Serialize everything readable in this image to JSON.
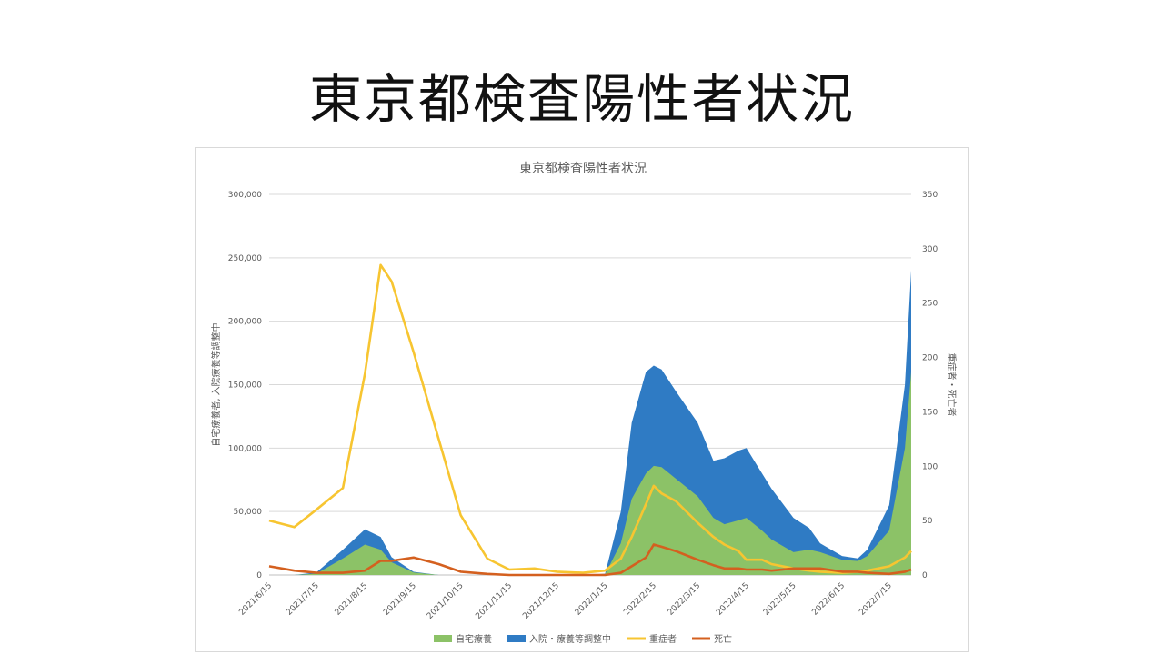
{
  "slide": {
    "title": "東京都検査陽性者状況"
  },
  "chart_data": {
    "type": "area",
    "title": "東京都検査陽性者状況",
    "ylabel": "自宅療養者, 入院療養等調整中",
    "y2label": "重症者・死亡者",
    "ylim": [
      0,
      300000
    ],
    "y2lim": [
      0,
      350
    ],
    "grid": true,
    "legend_position": "bottom",
    "y_ticks": [
      "0",
      "50,000",
      "100,000",
      "150,000",
      "200,000",
      "250,000",
      "300,000"
    ],
    "y2_ticks": [
      "0",
      "50",
      "100",
      "150",
      "200",
      "250",
      "300",
      "350"
    ],
    "x_tick_labels": [
      "2021/6/15",
      "2021/7/15",
      "2021/8/15",
      "2021/9/15",
      "2021/10/15",
      "2021/11/15",
      "2021/12/15",
      "2022/1/15",
      "2022/2/15",
      "2022/3/15",
      "2022/4/15",
      "2022/5/15",
      "2022/6/15",
      "2022/7/15"
    ],
    "x": [
      "2021/6/15",
      "2021/7/1",
      "2021/7/15",
      "2021/8/1",
      "2021/8/15",
      "2021/8/25",
      "2021/9/1",
      "2021/9/15",
      "2021/10/1",
      "2021/10/15",
      "2021/11/1",
      "2021/11/15",
      "2021/12/1",
      "2021/12/15",
      "2022/1/1",
      "2022/1/15",
      "2022/1/25",
      "2022/2/1",
      "2022/2/10",
      "2022/2/15",
      "2022/2/20",
      "2022/3/1",
      "2022/3/15",
      "2022/3/25",
      "2022/4/1",
      "2022/4/10",
      "2022/4/15",
      "2022/4/25",
      "2022/5/1",
      "2022/5/15",
      "2022/5/25",
      "2022/6/1",
      "2022/6/15",
      "2022/6/25",
      "2022/7/1",
      "2022/7/15",
      "2022/7/25",
      "2022/7/29"
    ],
    "series": [
      {
        "name": "自宅療養",
        "color": "#8cc267",
        "axis": "left",
        "kind": "area",
        "values": [
          0,
          0,
          1000,
          13000,
          24000,
          20000,
          10000,
          2000,
          0,
          0,
          0,
          0,
          0,
          0,
          0,
          500,
          25000,
          60000,
          80000,
          86000,
          85000,
          76000,
          62000,
          45000,
          40000,
          43000,
          45000,
          35000,
          28000,
          18000,
          20000,
          18000,
          12000,
          11000,
          15000,
          35000,
          100000,
          160000
        ]
      },
      {
        "name": "入院・療養等調整中",
        "color": "#2f7bc4",
        "axis": "left",
        "kind": "area",
        "values": [
          0,
          0,
          2000,
          20000,
          36000,
          30000,
          14000,
          2500,
          0,
          0,
          0,
          0,
          0,
          0,
          0,
          1000,
          50000,
          120000,
          160000,
          165000,
          162000,
          145000,
          120000,
          90000,
          92000,
          98000,
          100000,
          80000,
          68000,
          45000,
          37000,
          25000,
          15000,
          13000,
          20000,
          55000,
          150000,
          240000
        ]
      },
      {
        "name": "重症者",
        "color": "#f7c531",
        "axis": "right",
        "kind": "line",
        "values": [
          50,
          44,
          60,
          80,
          185,
          285,
          270,
          205,
          125,
          55,
          15,
          5,
          6,
          3,
          2,
          4,
          15,
          35,
          65,
          82,
          75,
          68,
          48,
          35,
          28,
          22,
          14,
          14,
          10,
          6,
          4,
          3,
          2,
          3,
          4,
          8,
          16,
          22
        ]
      },
      {
        "name": "死亡",
        "color": "#d4601f",
        "axis": "right",
        "kind": "line",
        "values": [
          8,
          4,
          2,
          2,
          4,
          13,
          13,
          16,
          10,
          3,
          1,
          0,
          0,
          0,
          0,
          0,
          2,
          8,
          16,
          28,
          26,
          22,
          14,
          9,
          6,
          6,
          5,
          5,
          4,
          6,
          6,
          6,
          3,
          3,
          2,
          1,
          3,
          5
        ]
      }
    ]
  }
}
